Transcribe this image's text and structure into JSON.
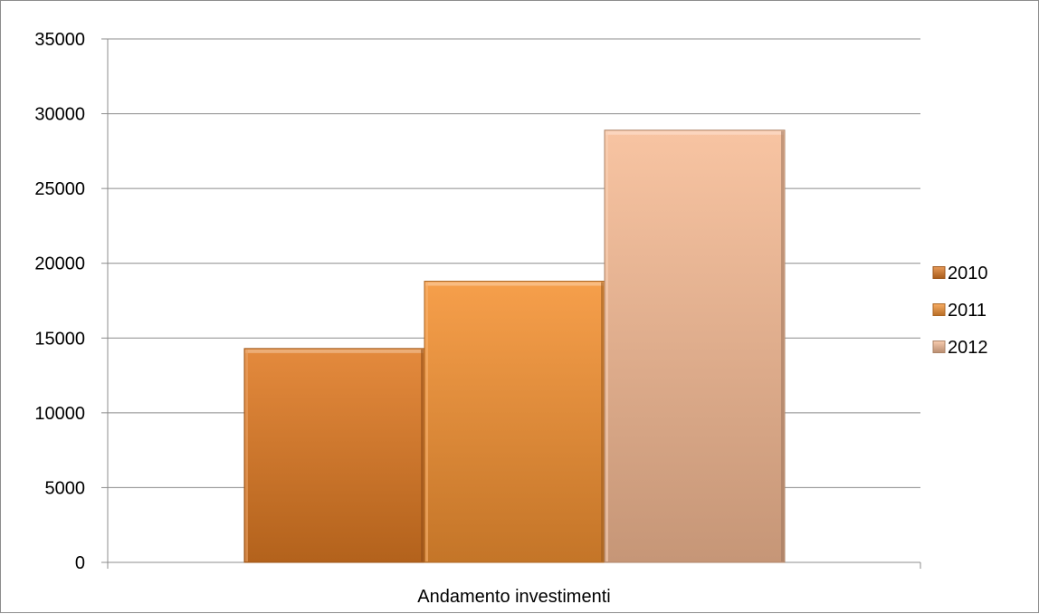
{
  "chart_data": {
    "type": "bar",
    "title": "",
    "xlabel": "",
    "ylabel": "",
    "categories": [
      "Andamento investimenti"
    ],
    "series": [
      {
        "name": "2010",
        "values": [
          14300
        ],
        "color": "#e07a23"
      },
      {
        "name": "2011",
        "values": [
          18800
        ],
        "color": "#f59232"
      },
      {
        "name": "2012",
        "values": [
          28900
        ],
        "color": "#f7bc95"
      }
    ],
    "ylim": [
      0,
      35000
    ],
    "yticks": [
      "0",
      "5000",
      "10000",
      "15000",
      "20000",
      "25000",
      "30000",
      "35000"
    ],
    "grid": true,
    "legend": "right"
  }
}
